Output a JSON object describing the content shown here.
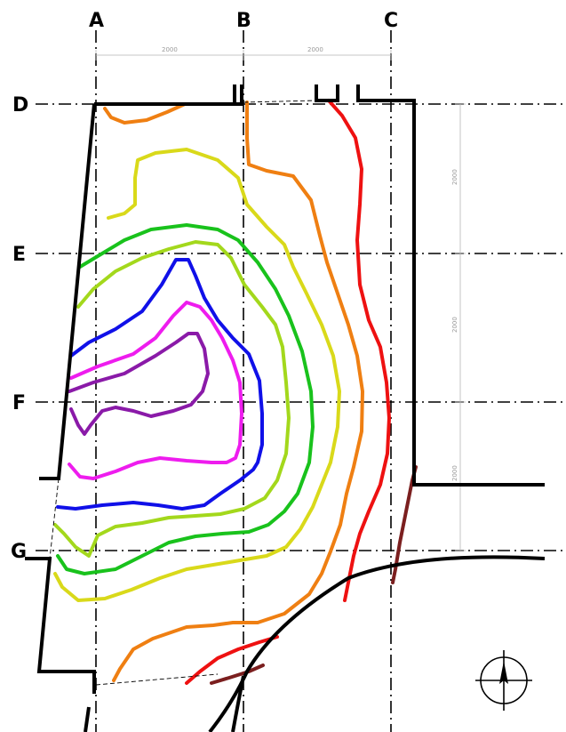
{
  "grid": {
    "vertical_labels": [
      "A",
      "B",
      "C"
    ],
    "horizontal_labels": [
      "D",
      "E",
      "F",
      "G"
    ]
  },
  "dimensions": {
    "top": [
      "2000",
      "2000"
    ],
    "right": [
      "2000",
      "2000",
      "2000"
    ]
  },
  "contour_colors": [
    "#7b1f1f",
    "#ee1111",
    "#ef7f12",
    "#d9d91a",
    "#a3d81c",
    "#19c21c",
    "#1010e8",
    "#ee1cee",
    "#8a1aa8"
  ],
  "icons": {
    "north": "north-arrow-icon"
  }
}
